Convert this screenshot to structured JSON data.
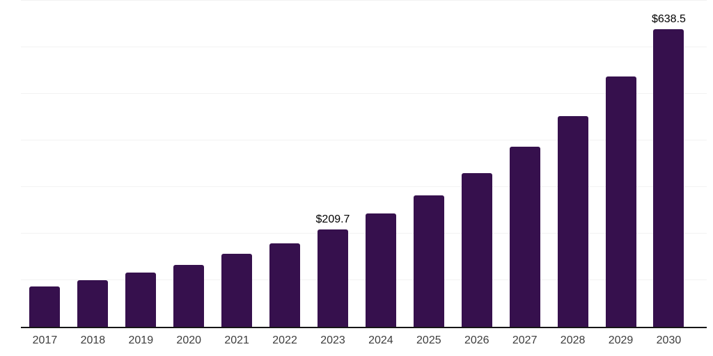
{
  "chart_data": {
    "type": "bar",
    "title": "",
    "xlabel": "",
    "ylabel": "",
    "categories": [
      "2017",
      "2018",
      "2019",
      "2020",
      "2021",
      "2022",
      "2023",
      "2024",
      "2025",
      "2026",
      "2027",
      "2028",
      "2029",
      "2030"
    ],
    "values": [
      87,
      100,
      116,
      133,
      157,
      179,
      209.7,
      243,
      282,
      330,
      386,
      453,
      537,
      638.5
    ],
    "value_labels": {
      "6": "$209.7",
      "13": "$638.5"
    },
    "ylim": [
      0,
      700
    ],
    "gridline_step": 100,
    "grid": "horizontal",
    "legend": "none",
    "colors": {
      "bar": "#36104d",
      "axis_line": "#161616",
      "gridline": "#f2f2f2",
      "tick_label": "#3d3d3d",
      "value_label": "#000000",
      "background": "#ffffff"
    }
  }
}
